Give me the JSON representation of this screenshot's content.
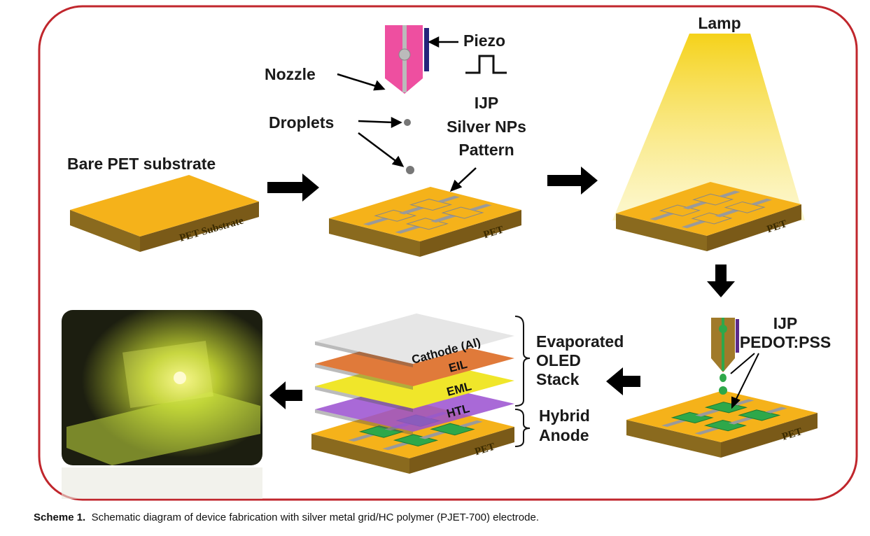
{
  "labels": {
    "bare_pet": "Bare PET substrate",
    "pet_substrate": "PET Substrate",
    "nozzle": "Nozzle",
    "piezo": "Piezo",
    "droplets": "Droplets",
    "ijp_silver": [
      "IJP",
      "Silver NPs",
      "Pattern"
    ],
    "pet": "PET",
    "lamp": "Lamp",
    "ijp_pedot": [
      "IJP",
      "PEDOT:PSS"
    ],
    "cathode": "Cathode (Al)",
    "eil": "EIL",
    "eml": "EML",
    "htl": "HTL",
    "evaporated": [
      "Evaporated",
      "OLED",
      "Stack"
    ],
    "hybrid": [
      "Hybrid",
      "Anode"
    ]
  },
  "caption": {
    "label": "Scheme 1.",
    "text": "Schematic diagram of device fabrication with silver metal grid/HC polymer (PJET-700) electrode."
  },
  "colors": {
    "border": "#c0262c",
    "substrate_top": "#f5b21a",
    "substrate_side": "#8a6a1e",
    "nozzle": "#ee4fa0",
    "pedot": "#2ea84a",
    "cathode": "#e6e6e6",
    "eil": "#e07a3a",
    "eml": "#f0e62a",
    "htl": "#9a4fd0"
  }
}
